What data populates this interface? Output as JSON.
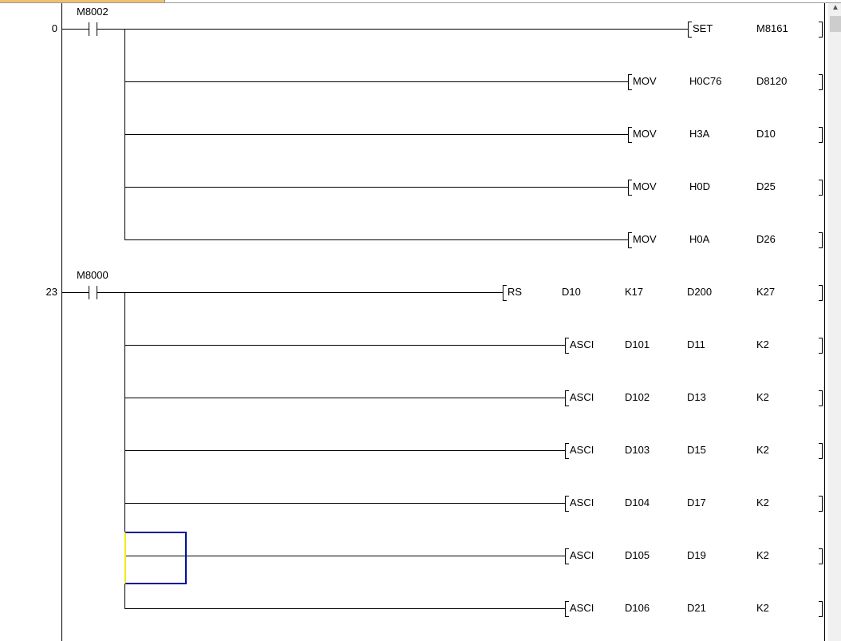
{
  "rungs": [
    {
      "step": "0",
      "contact": "M8002",
      "rows": [
        {
          "instr": "SET",
          "operands": [
            "M8161"
          ]
        },
        {
          "instr": "MOV",
          "operands": [
            "H0C76",
            "D8120"
          ]
        },
        {
          "instr": "MOV",
          "operands": [
            "H3A",
            "D10"
          ]
        },
        {
          "instr": "MOV",
          "operands": [
            "H0D",
            "D25"
          ]
        },
        {
          "instr": "MOV",
          "operands": [
            "H0A",
            "D26"
          ]
        }
      ]
    },
    {
      "step": "23",
      "contact": "M8000",
      "rows": [
        {
          "instr": "RS",
          "operands": [
            "D10",
            "K17",
            "D200",
            "K27"
          ]
        },
        {
          "instr": "ASCI",
          "operands": [
            "D101",
            "D11",
            "K2"
          ]
        },
        {
          "instr": "ASCI",
          "operands": [
            "D102",
            "D13",
            "K2"
          ]
        },
        {
          "instr": "ASCI",
          "operands": [
            "D103",
            "D15",
            "K2"
          ]
        },
        {
          "instr": "ASCI",
          "operands": [
            "D104",
            "D17",
            "K2"
          ]
        },
        {
          "instr": "ASCI",
          "operands": [
            "D105",
            "D19",
            "K2"
          ]
        },
        {
          "instr": "ASCI",
          "operands": [
            "D106",
            "D21",
            "K2"
          ]
        }
      ]
    }
  ],
  "cursor_color": "#00109a"
}
